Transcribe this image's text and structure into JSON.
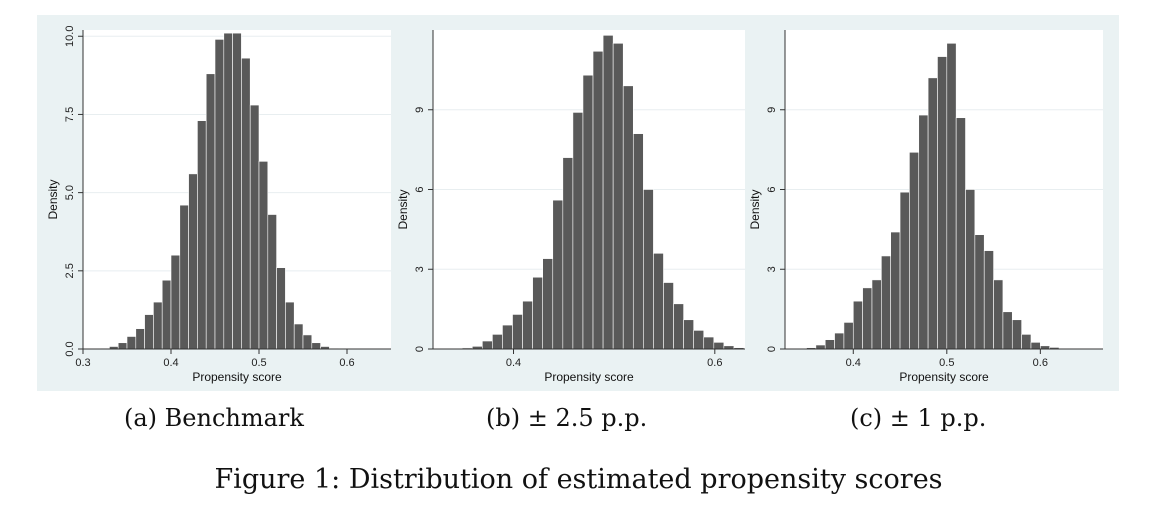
{
  "figure": {
    "title": "Figure 1: Distribution of estimated propensity scores",
    "captions": [
      "(a) Benchmark",
      "(b) ± 2.5 p.p.",
      "(c) ± 1 p.p."
    ]
  },
  "colors": {
    "bar": "#595959",
    "panel_bg": "#eaf2f3",
    "plot_bg": "#ffffff",
    "grid": "#e8eef0"
  },
  "chart_data": [
    {
      "type": "bar",
      "xlabel": "Propensity score",
      "ylabel": "Density",
      "xlim": [
        0.3,
        0.65
      ],
      "ylim": [
        0,
        10.2
      ],
      "xticks": [
        "0.3",
        "0.4",
        "0.5",
        "0.6"
      ],
      "yticks": [
        "0.0",
        "2.5",
        "5.0",
        "7.5",
        "10.0"
      ],
      "bin_start": 0.32,
      "bin_width": 0.01,
      "values": [
        0.02,
        0.08,
        0.2,
        0.4,
        0.65,
        1.1,
        1.5,
        2.2,
        3.0,
        4.6,
        5.6,
        7.3,
        8.8,
        9.9,
        10.1,
        10.1,
        9.3,
        7.8,
        6.0,
        4.3,
        2.6,
        1.5,
        0.8,
        0.45,
        0.2,
        0.08,
        0.02,
        0.01
      ],
      "grid": true
    },
    {
      "type": "bar",
      "xlabel": "Propensity score",
      "ylabel": "Density",
      "xlim": [
        0.32,
        0.63
      ],
      "ylim": [
        0,
        12.0
      ],
      "xticks": [
        "0.4",
        "0.6"
      ],
      "yticks": [
        "0",
        "3",
        "6",
        "9"
      ],
      "bin_start": 0.349,
      "bin_width": 0.01,
      "values": [
        0.04,
        0.1,
        0.3,
        0.55,
        0.9,
        1.3,
        1.8,
        2.7,
        3.4,
        5.6,
        7.2,
        8.9,
        10.3,
        11.2,
        11.8,
        11.5,
        9.9,
        8.1,
        6.0,
        3.6,
        2.5,
        1.7,
        1.1,
        0.7,
        0.45,
        0.25,
        0.12,
        0.05
      ]
    },
    {
      "type": "bar",
      "xlabel": "Propensity score",
      "ylabel": "Density",
      "xlim": [
        0.327,
        0.667
      ],
      "ylim": [
        0,
        12.0
      ],
      "xticks": [
        "0.4",
        "0.5",
        "0.6"
      ],
      "yticks": [
        "0",
        "3",
        "6",
        "9"
      ],
      "bin_start": 0.35,
      "bin_width": 0.01,
      "values": [
        0.05,
        0.15,
        0.35,
        0.6,
        1.0,
        1.8,
        2.3,
        2.6,
        3.5,
        4.4,
        5.9,
        7.4,
        8.8,
        10.2,
        11.0,
        11.5,
        8.7,
        6.0,
        4.3,
        3.7,
        2.6,
        1.4,
        1.1,
        0.55,
        0.25,
        0.12,
        0.06
      ]
    }
  ]
}
